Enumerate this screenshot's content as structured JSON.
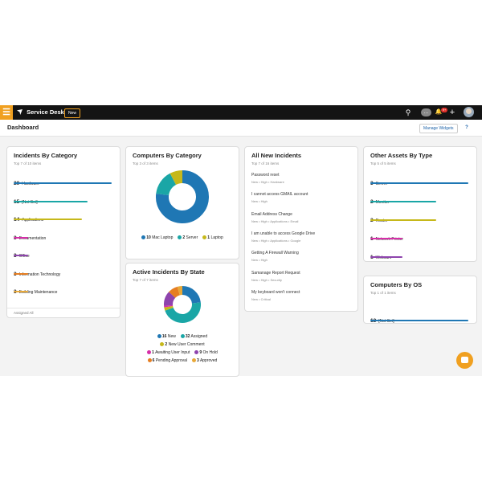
{
  "topbar": {
    "brand": "Service Desk",
    "new_button": "New",
    "notification_count": "9+",
    "menu_glyph": "☰",
    "search_glyph": "⚲",
    "chat_glyph": "…",
    "bell_glyph": "🔔",
    "add_glyph": "+"
  },
  "subbar": {
    "title": "Dashboard",
    "manage_widgets": "Manage Widgets",
    "help": "?"
  },
  "incidents_by_category": {
    "title": "Incidents By Category",
    "subtitle": "Top 7 of 10 items",
    "footer": "Assigned All",
    "items": [
      {
        "count": "20",
        "label": "Hardware",
        "fill": 1.0,
        "color": "#1f77b4"
      },
      {
        "count": "15",
        "label": "[Not Set]",
        "fill": 0.75,
        "color": "#1aa6a6"
      },
      {
        "count": "14",
        "label": "Applications",
        "fill": 0.7,
        "color": "#c6b81a"
      },
      {
        "count": "3",
        "label": "Documentation",
        "fill": 0.15,
        "color": "#d62ea8"
      },
      {
        "count": "3",
        "label": "Office",
        "fill": 0.15,
        "color": "#8e44ad"
      },
      {
        "count": "3",
        "label": "Information Technology",
        "fill": 0.15,
        "color": "#e67e22"
      },
      {
        "count": "3",
        "label": "Building Maintenance",
        "fill": 0.15,
        "color": "#e8a838"
      }
    ]
  },
  "computers_by_category": {
    "title": "Computers By Category",
    "subtitle": "Top 3 of 3 items",
    "chart_data": {
      "type": "pie",
      "donut": true,
      "slices": [
        {
          "name": "Mac Laptop",
          "value": 10,
          "color": "#1f77b4"
        },
        {
          "name": "Server",
          "value": 2,
          "color": "#1aa6a6"
        },
        {
          "name": "Laptop",
          "value": 1,
          "color": "#c6b81a"
        }
      ]
    }
  },
  "active_incidents_by_state": {
    "title": "Active Incidents By State",
    "subtitle": "Top 7 of 7 items",
    "chart_data": {
      "type": "pie",
      "donut": true,
      "slices": [
        {
          "name": "New",
          "value": 16,
          "color": "#1f77b4"
        },
        {
          "name": "Assigned",
          "value": 32,
          "color": "#1aa6a6"
        },
        {
          "name": "New User Comment",
          "value": 2,
          "color": "#c6b81a"
        },
        {
          "name": "Awaiting User Input",
          "value": 1,
          "color": "#d62ea8"
        },
        {
          "name": "On Hold",
          "value": 9,
          "color": "#8e44ad"
        },
        {
          "name": "Pending Approval",
          "value": 6,
          "color": "#e67e22"
        },
        {
          "name": "Approved",
          "value": 3,
          "color": "#e8a838"
        }
      ]
    }
  },
  "all_new_incidents": {
    "title": "All New Incidents",
    "subtitle": "Top 7 of 16 items",
    "items": [
      {
        "title": "Password reset",
        "meta": "New  •  High  •  Hardware"
      },
      {
        "title": "I cannot access GMAIL account",
        "meta": "New  •  High"
      },
      {
        "title": "Email Address Change",
        "meta": "New  •  High  •  Applications  •  Email"
      },
      {
        "title": "I am unable to access Google Drive",
        "meta": "New  •  High  •  Applications  •  Google"
      },
      {
        "title": "Getting A Firewall Warning",
        "meta": "New  •  High"
      },
      {
        "title": "Samanage Report Request",
        "meta": "New  •  High  •  Security"
      },
      {
        "title": "My keyboard won't connect",
        "meta": "New  •  Critical"
      }
    ]
  },
  "other_assets_by_type": {
    "title": "Other Assets By Type",
    "subtitle": "Top 5 of 5 items",
    "items": [
      {
        "count": "3",
        "label": "Server",
        "fill": 1.0,
        "color": "#1f77b4"
      },
      {
        "count": "2",
        "label": "Monitor",
        "fill": 0.67,
        "color": "#1aa6a6"
      },
      {
        "count": "2",
        "label": "Router",
        "fill": 0.67,
        "color": "#c6b81a"
      },
      {
        "count": "1",
        "label": "Network Printer",
        "fill": 0.33,
        "color": "#d62ea8"
      },
      {
        "count": "1",
        "label": "Webcam",
        "fill": 0.33,
        "color": "#8e44ad"
      }
    ]
  },
  "computers_by_os": {
    "title": "Computers By OS",
    "subtitle": "Top 1 of 1 items",
    "items": [
      {
        "count": "13",
        "label": "[Not Set]",
        "fill": 1.0,
        "color": "#1f77b4"
      }
    ]
  }
}
